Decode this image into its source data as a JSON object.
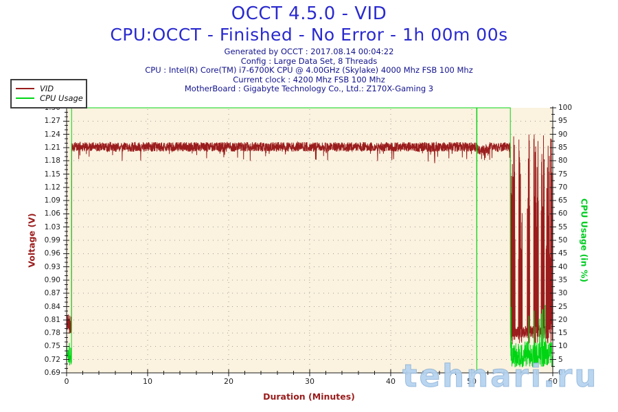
{
  "header": {
    "title": "OCCT 4.5.0 - VID",
    "subtitle": "CPU:OCCT - Finished - No Error - 1h 00m 00s",
    "info_lines": [
      "Generated by OCCT : 2017.08.14 00:04:22",
      "Config : Large Data Set, 8 Threads",
      "CPU : Intel(R) Core(TM) i7-6700K CPU @ 4.00GHz (Skylake) 4000 Mhz FSB 100 Mhz",
      "Current clock : 4200 Mhz FSB 100 Mhz",
      "MotherBoard : Gigabyte Technology Co., Ltd.: Z170X-Gaming 3"
    ]
  },
  "legend": {
    "items": [
      {
        "label": "VID",
        "color": "#9a1c1c"
      },
      {
        "label": "CPU Usage",
        "color": "#00d514"
      }
    ]
  },
  "watermark": "tehnari.ru",
  "colors": {
    "title_blue": "#2a2ace",
    "info_navy": "#12128e",
    "vid_red": "#9a1c1c",
    "cpu_green": "#00d514",
    "plot_background": "#fbf2df",
    "grid_gray": "#9e9e9e",
    "axis_black": "#1a1a1a"
  },
  "chart_data": {
    "type": "line",
    "title": "OCCT 4.5.0 - VID",
    "grid": true,
    "legend_position": "top-left",
    "x_axis": {
      "label": "Duration (Minutes)",
      "range": [
        0,
        60
      ],
      "major_ticks": [
        0,
        10,
        20,
        30,
        40,
        50,
        60
      ],
      "major_tick_labels": [
        "0",
        "10",
        "20",
        "30",
        "40",
        "50",
        "60"
      ],
      "minor_tick_step_min": 2
    },
    "y_axis_left": {
      "label": "Voltage (V)",
      "range": [
        0.69,
        1.3
      ],
      "tick_labels": [
        "1.30",
        "1.27",
        "1.24",
        "1.21",
        "1.18",
        "1.15",
        "1.12",
        "1.09",
        "1.06",
        "1.03",
        "0.99",
        "0.96",
        "0.93",
        "0.90",
        "0.87",
        "0.84",
        "0.81",
        "0.78",
        "0.75",
        "0.72",
        "0.69"
      ]
    },
    "y_axis_right": {
      "label": "CPU Usage (in %)",
      "range": [
        0,
        100
      ],
      "tick_labels": [
        "100",
        "95",
        "90",
        "85",
        "80",
        "75",
        "70",
        "65",
        "60",
        "55",
        "50",
        "45",
        "40",
        "35",
        "30",
        "25",
        "20",
        "15",
        "10",
        "5",
        "0"
      ]
    },
    "steady_state": {
      "vid_v": 1.21,
      "cpu_pct": 100
    },
    "events": {
      "load_start_min": 0.62,
      "load_end_min": 54.78,
      "cpu_momentary_dip_min": 50.62,
      "vid_slight_dip_window_min": [
        50.7,
        52.2
      ],
      "vid_slight_dip_delta_v": 0.006
    },
    "series": [
      {
        "name": "VID",
        "axis": "left",
        "color": "#9a1c1c",
        "segments": [
          {
            "from_min": 0,
            "to_min": 0.62,
            "base_v": 0.805,
            "noise_v": 0.05,
            "note": "idle before test, ~0.78-0.84 V"
          },
          {
            "from_min": 0.62,
            "to_min": 54.78,
            "base_v": 1.21,
            "noise_v": 0.022,
            "note": "steady ~1.21 V under load"
          },
          {
            "from_min": 54.78,
            "to_min": 60,
            "base_v": 0.785,
            "noise_v": 0.03,
            "burst_low_v": 0.93,
            "burst_peak_v": 1.24,
            "burst_windows_min": [
              [
                54.82,
                55.35
              ],
              [
                55.75,
                56.25
              ],
              [
                56.85,
                57.15
              ],
              [
                57.65,
                58.25
              ],
              [
                58.55,
                58.95
              ],
              [
                59.15,
                59.95
              ]
            ],
            "note": "idle after test with tall VID oscillation bursts"
          }
        ]
      },
      {
        "name": "CPU Usage",
        "axis": "right",
        "color": "#00d514",
        "segments": [
          {
            "from_min": 0,
            "to_min": 0.62,
            "base_pct": 7,
            "noise_pct": 5,
            "note": "idle ~3-12 %"
          },
          {
            "from_min": 0.62,
            "to_min": 54.78,
            "base_pct": 100,
            "noise_pct": 0,
            "dips": [
              {
                "at_min": 50.62,
                "to_pct": 0
              }
            ],
            "note": "full load 100 %"
          },
          {
            "from_min": 54.78,
            "to_min": 60,
            "base_pct": 7,
            "noise_pct": 5,
            "spike_pct": 26,
            "note": "idle ~3-12 % with spikes to ~26 %"
          }
        ]
      }
    ]
  }
}
